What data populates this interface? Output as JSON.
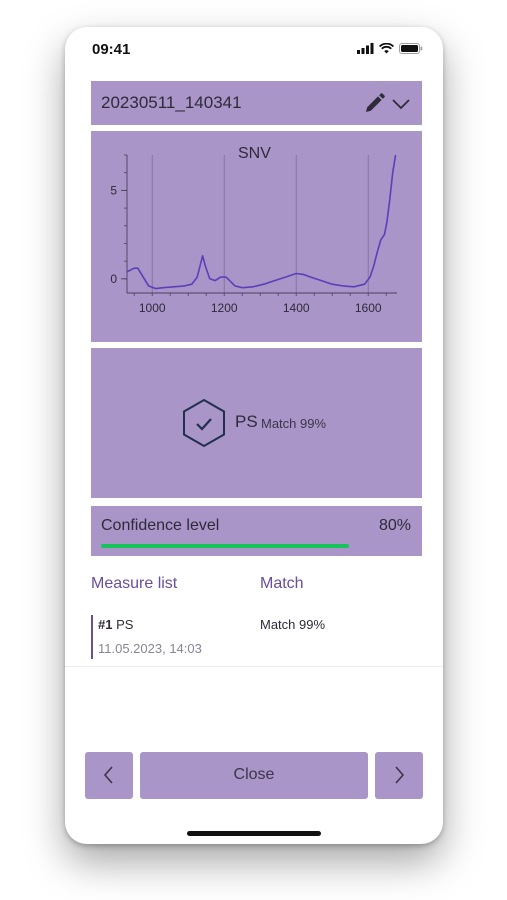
{
  "status_bar": {
    "time": "09:41",
    "icons": [
      "signal-icon",
      "wifi-icon",
      "battery-icon"
    ]
  },
  "header": {
    "title": "20230511_140341",
    "icons": [
      "pencil-icon",
      "chevron-down-icon"
    ]
  },
  "chart_data": {
    "type": "line",
    "title": "SNV",
    "xlabel": "",
    "ylabel": "",
    "x_ticks": [
      "1000",
      "1200",
      "1400",
      "1600"
    ],
    "y_ticks": [
      "0",
      "5"
    ],
    "xlim": [
      930,
      1680
    ],
    "ylim": [
      -0.8,
      7
    ],
    "grid": "vertical",
    "series": [
      {
        "x": [
          930,
          950,
          960,
          975,
          990,
          1010,
          1030,
          1060,
          1090,
          1110,
          1125,
          1135,
          1140,
          1148,
          1160,
          1175,
          1190,
          1205,
          1215,
          1230,
          1250,
          1280,
          1310,
          1340,
          1370,
          1400,
          1420,
          1440,
          1470,
          1500,
          1530,
          1560,
          1590,
          1605,
          1615,
          1625,
          1635,
          1645,
          1652,
          1660,
          1668,
          1676
        ],
        "y": [
          0.4,
          0.6,
          0.6,
          0.1,
          -0.4,
          -0.55,
          -0.5,
          -0.45,
          -0.4,
          -0.3,
          0.1,
          0.9,
          1.3,
          0.7,
          0.0,
          -0.1,
          0.1,
          0.1,
          -0.1,
          -0.4,
          -0.5,
          -0.45,
          -0.3,
          -0.1,
          0.1,
          0.3,
          0.25,
          0.1,
          -0.1,
          -0.3,
          -0.4,
          -0.45,
          -0.3,
          0.1,
          0.7,
          1.5,
          2.2,
          2.5,
          3.2,
          4.5,
          6.0,
          7.0
        ]
      }
    ],
    "line_color": "#5b3fb8"
  },
  "result": {
    "material": "PS",
    "match_text": "Match 99%",
    "icon": "hexagon-check-icon"
  },
  "confidence": {
    "label": "Confidence level",
    "value_text": "80%",
    "value": 0.8,
    "color": "#16c55a"
  },
  "measure_list": {
    "header_measure": "Measure list",
    "header_match": "Match",
    "items": [
      {
        "number": "#1",
        "name": "PS",
        "date": "11.05.2023, 14:03",
        "match": "Match 99%"
      }
    ]
  },
  "footer": {
    "close_label": "Close",
    "prev_icon": "chevron-left-icon",
    "next_icon": "chevron-right-icon"
  },
  "colors": {
    "panel": "#a995c8",
    "accent_text": "#6b4d9a"
  }
}
